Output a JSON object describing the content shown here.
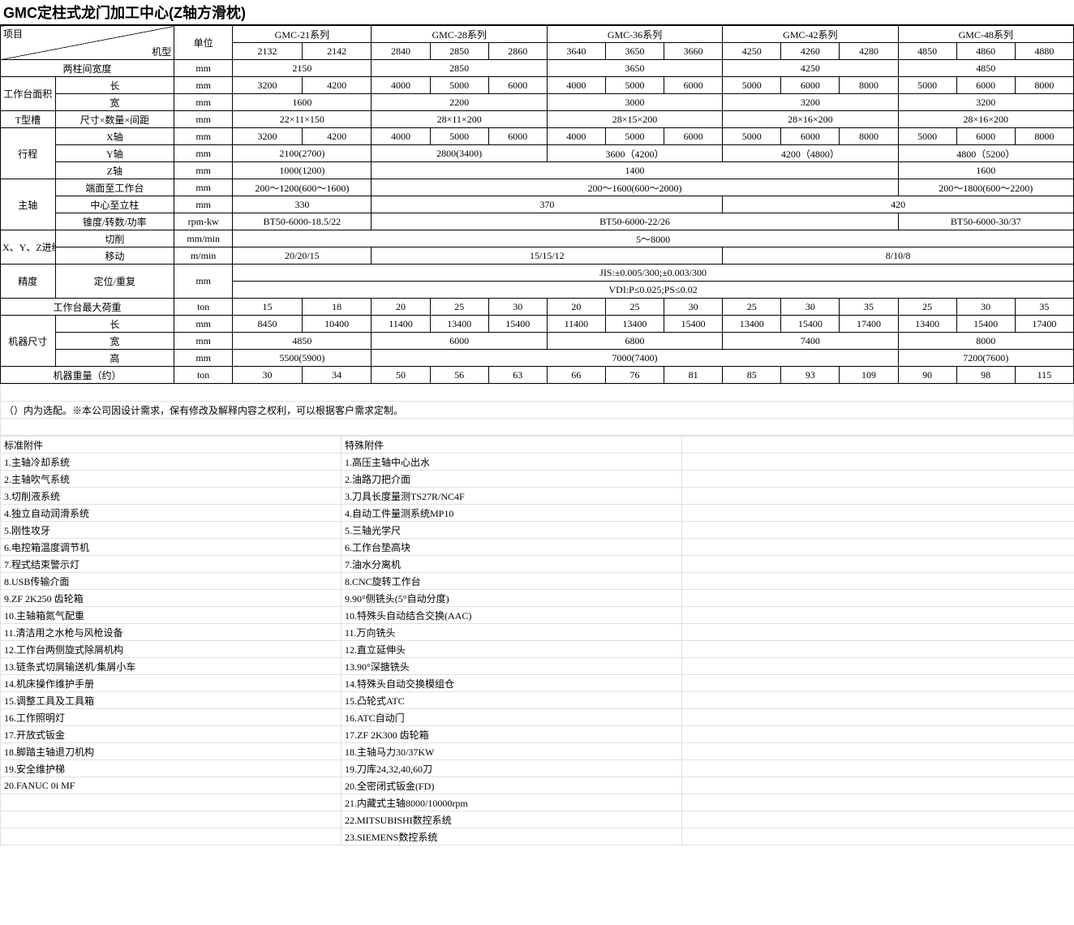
{
  "title": "GMC定柱式龙门加工中心(Z轴方滑枕)",
  "hdr": {
    "item": "项目",
    "model": "机型",
    "unit": "单位",
    "series": [
      "GMC-21系列",
      "GMC-28系列",
      "GMC-36系列",
      "GMC-42系列",
      "GMC-48系列"
    ],
    "models": [
      "2132",
      "2142",
      "2840",
      "2850",
      "2860",
      "3640",
      "3650",
      "3660",
      "4250",
      "4260",
      "4280",
      "4850",
      "4860",
      "4880"
    ]
  },
  "rows": {
    "colwidth_label": "两柱间宽度",
    "colwidth_unit": "mm",
    "colwidth": [
      "2150",
      "2850",
      "3650",
      "4250",
      "4850"
    ],
    "worktable": "工作台面积",
    "wt_len_label": "长",
    "wt_len_unit": "mm",
    "wt_len": [
      "3200",
      "4200",
      "4000",
      "5000",
      "6000",
      "4000",
      "5000",
      "6000",
      "5000",
      "6000",
      "8000",
      "5000",
      "6000",
      "8000"
    ],
    "wt_wid_label": "宽",
    "wt_wid_unit": "mm",
    "wt_wid": [
      "1600",
      "2200",
      "3000",
      "3200",
      "3200"
    ],
    "tslot_label": "T型槽",
    "tslot_sub": "尺寸×数量×间距",
    "tslot_unit": "mm",
    "tslot": [
      "22×11×150",
      "28×11×200",
      "28×15×200",
      "28×16×200",
      "28×16×200"
    ],
    "travel": "行程",
    "trav_x_label": "X轴",
    "trav_x_unit": "mm",
    "trav_x": [
      "3200",
      "4200",
      "4000",
      "5000",
      "6000",
      "4000",
      "5000",
      "6000",
      "5000",
      "6000",
      "8000",
      "5000",
      "6000",
      "8000"
    ],
    "trav_y_label": "Y轴",
    "trav_y_unit": "mm",
    "trav_y": [
      "2100(2700)",
      "2800(3400)",
      "3600（4200）",
      "4200（4800）",
      "4800（5200）"
    ],
    "trav_z_label": "Z轴",
    "trav_z_unit": "mm",
    "trav_z_a": "1000(1200)",
    "trav_z_b": "1400",
    "trav_z_c": "1600",
    "spindle": "主轴",
    "sp_face_label": "端面至工作台",
    "sp_face_unit": "mm",
    "sp_face_a": "200～1200(600～1600)",
    "sp_face_b": "200～1600(600～2000)",
    "sp_face_c": "200～1800(600～2200)",
    "sp_ctr_label": "中心至立柱",
    "sp_ctr_unit": "mm",
    "sp_ctr_a": "330",
    "sp_ctr_b": "370",
    "sp_ctr_c": "420",
    "sp_taper_label": "锥度/转数/功率",
    "sp_taper_unit": "rpm-kw",
    "sp_taper_a": "BT50-6000-18.5/22",
    "sp_taper_b": "BT50-6000-22/26",
    "sp_taper_c": "BT50-6000-30/37",
    "feed": "X、Y、Z进给率",
    "feed_cut_label": "切削",
    "feed_cut_unit": "mm/min",
    "feed_cut": "5～8000",
    "feed_rapid_label": "移动",
    "feed_rapid_unit": "m/min",
    "feed_rapid_a": "20/20/15",
    "feed_rapid_b": "15/15/12",
    "feed_rapid_c": "8/10/8",
    "acc": "精度",
    "acc_label": "定位/重复",
    "acc_unit": "mm",
    "acc_a": "JIS:±0.005/300;±0.003/300",
    "acc_b": "VDI:P≤0.025;PS≤0.02",
    "maxload_label": "工作台最大荷重",
    "maxload_unit": "ton",
    "maxload": [
      "15",
      "18",
      "20",
      "25",
      "30",
      "20",
      "25",
      "30",
      "25",
      "30",
      "35",
      "25",
      "30",
      "35"
    ],
    "machsize": "机器尺寸",
    "ms_l_label": "长",
    "ms_l_unit": "mm",
    "ms_l": [
      "8450",
      "10400",
      "11400",
      "13400",
      "15400",
      "11400",
      "13400",
      "15400",
      "13400",
      "15400",
      "17400",
      "13400",
      "15400",
      "17400"
    ],
    "ms_w_label": "宽",
    "ms_w_unit": "mm",
    "ms_w": [
      "4850",
      "6000",
      "6800",
      "7400",
      "8000"
    ],
    "ms_h_label": "高",
    "ms_h_unit": "mm",
    "ms_h_a": "5500(5900)",
    "ms_h_b": "7000(7400)",
    "ms_h_c": "7200(7600)",
    "weight_label": "机器重量（约）",
    "weight_unit": "ton",
    "weight": [
      "30",
      "34",
      "50",
      "56",
      "63",
      "66",
      "76",
      "81",
      "85",
      "93",
      "109",
      "90",
      "98",
      "115"
    ]
  },
  "note": "（）内为选配。※本公司因设计需求，保有修改及解释内容之权利，可以根据客户需求定制。",
  "std_title": "标准附件",
  "spec_title": "特殊附件",
  "std": [
    "1.主轴冷却系统",
    "2.主轴吹气系统",
    "3.切削液系统",
    "4.独立自动润滑系统",
    "5.刚性攻牙",
    "6.电控箱温度调节机",
    "7.程式结束警示灯",
    "8.USB传输介面",
    "9.ZF 2K250 齿轮箱",
    "10.主轴箱氮气配重",
    "11.清洁用之水枪与风枪设备",
    "12.工作台两侧旋式除屑机构",
    "13.链条式切屑输送机/集屑小车",
    "14.机床操作维护手册",
    "15.调整工具及工具箱",
    "16.工作照明灯",
    "17.开放式钣金",
    "18.脚踏主轴退刀机构",
    "19.安全维护梯",
    "20.FANUC 0i MF"
  ],
  "specAtt": [
    "1.高压主轴中心出水",
    "2.油路刀把介面",
    "3.刀具长度量测TS27R/NC4F",
    "4.自动工件量测系统MP10",
    "5.三轴光学尺",
    "6.工作台垫高块",
    "7.油水分离机",
    "8.CNC旋转工作台",
    "9.90°侧铣头(5°自动分度)",
    "10.特殊头自动结合交换(AAC)",
    "11.万向铣头",
    "12.直立延伸头",
    "13.90°深搪铣头",
    "14.特殊头自动交换模组仓",
    "15.凸轮式ATC",
    "16.ATC自动门",
    "17.ZF 2K300 齿轮箱",
    "18.主轴马力30/37KW",
    "19.刀库24,32,40,60刀",
    "20.全密闭式钣金(FD)",
    "21.内藏式主轴8000/10000rpm",
    "22.MITSUBISHI数控系统",
    "23.SIEMENS数控系统"
  ],
  "style": {
    "title_fontsize": 18,
    "cell_fontsize": 12,
    "border_color": "#000000",
    "grid_color": "#e0e0e0",
    "bg": "#ffffff"
  }
}
